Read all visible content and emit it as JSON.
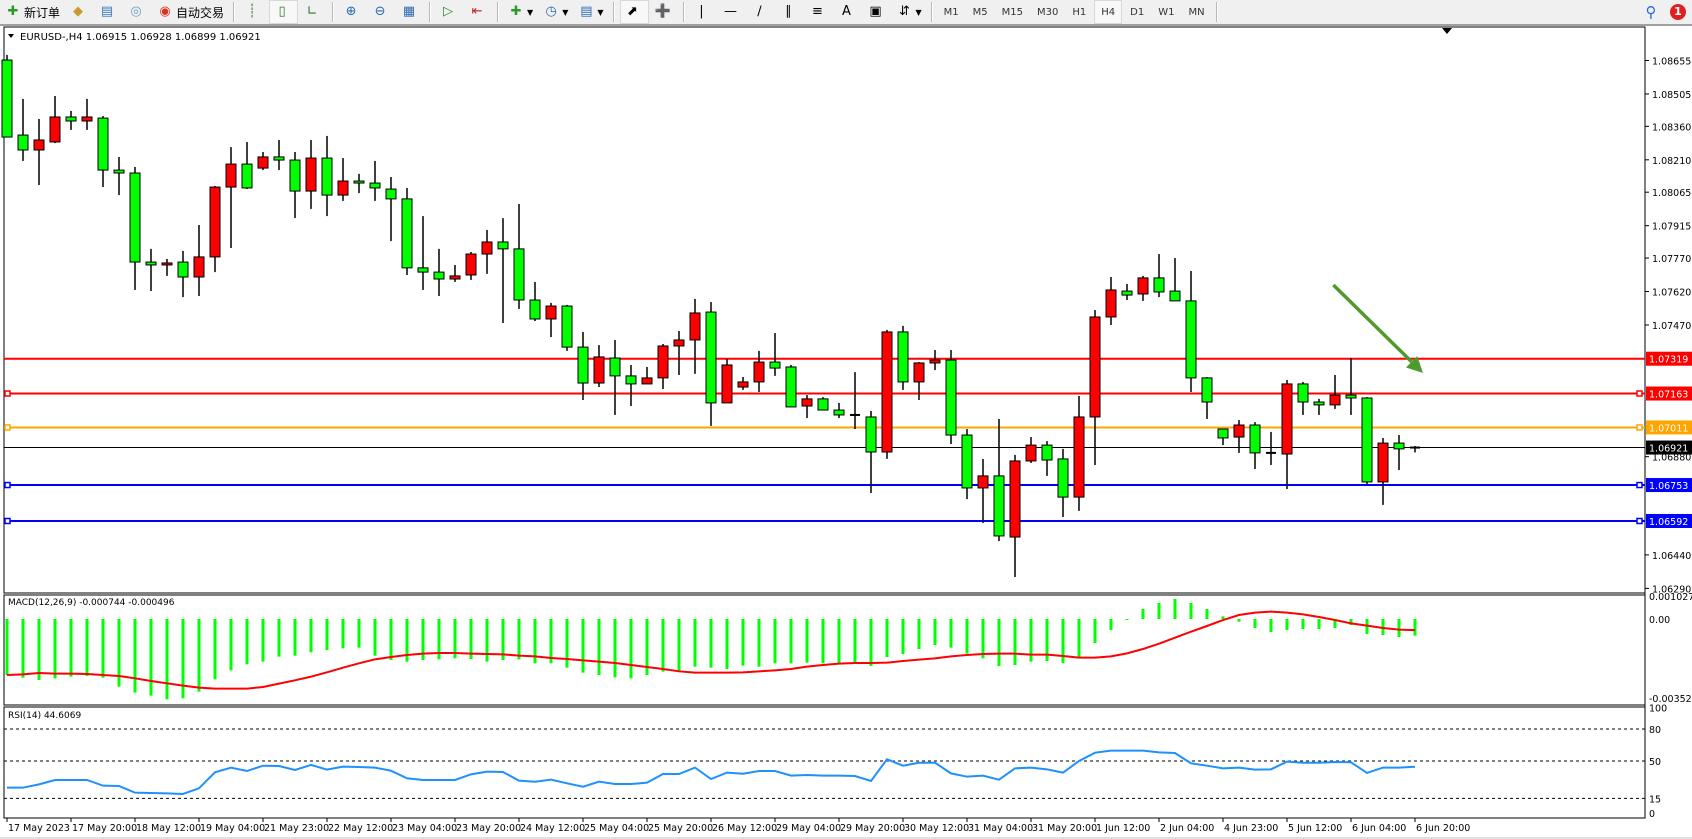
{
  "toolbar": {
    "new_order_label": "新订单",
    "auto_trading_label": "自动交易",
    "icons": [
      "new-order-icon",
      "market-watch-icon",
      "navigator-icon",
      "signals-icon",
      "auto-trading-icon",
      "bar-chart-icon",
      "candlestick-icon",
      "line-chart-icon",
      "zoom-in-icon",
      "zoom-out-icon",
      "tile-windows-icon",
      "chart-shift-icon",
      "autoscroll-icon",
      "indicators-icon",
      "periods-icon",
      "templates-icon",
      "cursor-icon",
      "crosshair-icon",
      "vertical-line-icon",
      "horizontal-line-icon",
      "trendline-icon",
      "equidistant-channel-icon",
      "fibonacci-icon",
      "text-icon",
      "text-label-icon",
      "arrows-icon"
    ],
    "text_tool": "A",
    "timeframes": [
      "M1",
      "M5",
      "M15",
      "M30",
      "H1",
      "H4",
      "D1",
      "W1",
      "MN"
    ],
    "active_timeframe": "H4",
    "notification_count": "1"
  },
  "chart_data": {
    "type": "candlestick",
    "header": "EURUSD-,H4  1.06915 1.06928 1.06899 1.06921",
    "colors": {
      "bull": "#ff0000",
      "bear": "#00ff00",
      "outline": "#000000",
      "arrow": "#4f9a2f"
    },
    "price_ticks": [
      "1.08655",
      "1.08505",
      "1.08360",
      "1.08210",
      "1.08065",
      "1.07915",
      "1.07770",
      "1.07620",
      "1.07470",
      "1.06880",
      "1.06440",
      "1.06290"
    ],
    "candles": [
      [
        1.08657,
        1.0868,
        1.08312,
        1.08312
      ],
      [
        1.08321,
        1.08483,
        1.08205,
        1.08254
      ],
      [
        1.08254,
        1.08393,
        1.08097,
        1.08299
      ],
      [
        1.0829,
        1.08496,
        1.08285,
        1.08402
      ],
      [
        1.08402,
        1.08429,
        1.08344,
        1.08384
      ],
      [
        1.08384,
        1.08483,
        1.08344,
        1.08402
      ],
      [
        1.08397,
        1.08406,
        1.08088,
        1.08164
      ],
      [
        1.08164,
        1.08223,
        1.08052,
        1.08151
      ],
      [
        1.08151,
        1.08178,
        1.07627,
        1.07752
      ],
      [
        1.07752,
        1.07811,
        1.07622,
        1.07739
      ],
      [
        1.07739,
        1.07766,
        1.0769,
        1.07748
      ],
      [
        1.07752,
        1.07802,
        1.07595,
        1.07685
      ],
      [
        1.07685,
        1.07918,
        1.076,
        1.07775
      ],
      [
        1.07775,
        1.08093,
        1.07707,
        1.08088
      ],
      [
        1.08088,
        1.08267,
        1.07815,
        1.08191
      ],
      [
        1.08191,
        1.0829,
        1.08079,
        1.08084
      ],
      [
        1.08173,
        1.08245,
        1.08164,
        1.08223
      ],
      [
        1.08223,
        1.08299,
        1.08164,
        1.08209
      ],
      [
        1.08209,
        1.08245,
        1.07949,
        1.0807
      ],
      [
        1.0807,
        1.08299,
        1.0799,
        1.08218
      ],
      [
        1.08218,
        1.08317,
        1.07958,
        1.08052
      ],
      [
        1.08052,
        1.08218,
        1.08026,
        1.08115
      ],
      [
        1.08115,
        1.08147,
        1.08061,
        1.08106
      ],
      [
        1.08106,
        1.08205,
        1.08026,
        1.08084
      ],
      [
        1.08079,
        1.08133,
        1.07846,
        1.08035
      ],
      [
        1.08035,
        1.08084,
        1.07694,
        1.07726
      ],
      [
        1.07726,
        1.07958,
        1.07627,
        1.07707
      ],
      [
        1.07707,
        1.07811,
        1.076,
        1.07676
      ],
      [
        1.07676,
        1.07739,
        1.07663,
        1.0769
      ],
      [
        1.07694,
        1.07797,
        1.07672,
        1.07788
      ],
      [
        1.07788,
        1.07896,
        1.07699,
        1.07842
      ],
      [
        1.07842,
        1.07949,
        1.07479,
        1.07811
      ],
      [
        1.07811,
        1.08012,
        1.07542,
        1.07582
      ],
      [
        1.07582,
        1.07663,
        1.07488,
        1.07497
      ],
      [
        1.07497,
        1.07569,
        1.07416,
        1.07555
      ],
      [
        1.07555,
        1.0756,
        1.07354,
        1.07371
      ],
      [
        1.07371,
        1.07439,
        1.07134,
        1.0721
      ],
      [
        1.0721,
        1.0738,
        1.07192,
        1.07327
      ],
      [
        1.07322,
        1.07403,
        1.07067,
        1.07242
      ],
      [
        1.07242,
        1.07291,
        1.07107,
        1.07206
      ],
      [
        1.07206,
        1.07282,
        1.07206,
        1.07233
      ],
      [
        1.07233,
        1.07385,
        1.07183,
        1.07376
      ],
      [
        1.07376,
        1.07443,
        1.07246,
        1.07403
      ],
      [
        1.07403,
        1.07587,
        1.07251,
        1.07524
      ],
      [
        1.07528,
        1.07573,
        1.07018,
        1.07121
      ],
      [
        1.07121,
        1.07318,
        1.07121,
        1.07291
      ],
      [
        1.07192,
        1.07237,
        1.07179,
        1.07215
      ],
      [
        1.07215,
        1.07354,
        1.0717,
        1.07304
      ],
      [
        1.07304,
        1.07434,
        1.07242,
        1.07277
      ],
      [
        1.07282,
        1.07291,
        1.07103,
        1.07103
      ],
      [
        1.07107,
        1.07156,
        1.07053,
        1.07139
      ],
      [
        1.07139,
        1.07147,
        1.07089,
        1.07089
      ],
      [
        1.07089,
        1.07121,
        1.07053,
        1.07067
      ],
      [
        1.07067,
        1.07259,
        1.07004,
        1.07062
      ],
      [
        1.07058,
        1.07085,
        1.06717,
        1.06901
      ],
      [
        1.06901,
        1.07448,
        1.0687,
        1.07439
      ],
      [
        1.07439,
        1.07466,
        1.07179,
        1.07215
      ],
      [
        1.07215,
        1.07304,
        1.07134,
        1.073
      ],
      [
        1.073,
        1.07358,
        1.07268,
        1.07313
      ],
      [
        1.07313,
        1.07358,
        1.06937,
        1.06977
      ],
      [
        1.06977,
        1.07004,
        1.0669,
        1.0674
      ],
      [
        1.0674,
        1.0687,
        1.06583,
        1.06794
      ],
      [
        1.06794,
        1.07049,
        1.06502,
        1.06525
      ],
      [
        1.0652,
        1.06888,
        1.06341,
        1.06861
      ],
      [
        1.06861,
        1.06968,
        1.06852,
        1.06932
      ],
      [
        1.06932,
        1.0695,
        1.06794,
        1.06865
      ],
      [
        1.0687,
        1.06915,
        1.0661,
        1.06699
      ],
      [
        1.06699,
        1.07152,
        1.06637,
        1.07058
      ],
      [
        1.07058,
        1.07537,
        1.06843,
        1.07506
      ],
      [
        1.07506,
        1.07685,
        1.0747,
        1.07627
      ],
      [
        1.07622,
        1.07654,
        1.07582,
        1.07604
      ],
      [
        1.07609,
        1.0769,
        1.07578,
        1.07681
      ],
      [
        1.07681,
        1.07788,
        1.07595,
        1.07618
      ],
      [
        1.07622,
        1.0777,
        1.07578,
        1.07578
      ],
      [
        1.07578,
        1.07712,
        1.0717,
        1.07233
      ],
      [
        1.07233,
        1.07237,
        1.07049,
        1.07125
      ],
      [
        1.07004,
        1.07004,
        1.06932,
        1.06964
      ],
      [
        1.06968,
        1.07044,
        1.06897,
        1.07022
      ],
      [
        1.07022,
        1.07035,
        1.06825,
        1.06897
      ],
      [
        1.06897,
        1.06991,
        1.06843,
        1.06897
      ],
      [
        1.06892,
        1.07224,
        1.06735,
        1.07206
      ],
      [
        1.07206,
        1.07215,
        1.07067,
        1.07125
      ],
      [
        1.07125,
        1.07139,
        1.07067,
        1.07112
      ],
      [
        1.07112,
        1.07246,
        1.07094,
        1.07156
      ],
      [
        1.07156,
        1.07322,
        1.07067,
        1.07143
      ],
      [
        1.07143,
        1.07147,
        1.06758,
        1.06767
      ],
      [
        1.06767,
        1.06964,
        1.06664,
        1.06941
      ],
      [
        1.06941,
        1.06977,
        1.0682,
        1.06915
      ],
      [
        1.06915,
        1.06928,
        1.06899,
        1.06921
      ]
    ],
    "levels": [
      {
        "price": 1.07319,
        "label": "1.07319",
        "color": "#ff0000"
      },
      {
        "price": 1.07163,
        "label": "1.07163",
        "color": "#ff0000"
      },
      {
        "price": 1.07011,
        "label": "1.07011",
        "color": "#ffa500"
      },
      {
        "price": 1.06753,
        "label": "1.06753",
        "color": "#0000ff"
      },
      {
        "price": 1.06592,
        "label": "1.06592",
        "color": "#0000ff"
      }
    ],
    "current_price": {
      "price": 1.06921,
      "label": "1.06921",
      "color": "#000000"
    },
    "arrow": {
      "from": {
        "bar": 82.9,
        "price": 1.07649
      },
      "to": {
        "bar": 88.5,
        "price": 1.07255
      }
    },
    "time_labels": [
      "17 May 2023",
      "17 May 20:00",
      "18 May 12:00",
      "19 May 04:00",
      "21 May 23:00",
      "22 May 12:00",
      "23 May 04:00",
      "23 May 20:00",
      "24 May 12:00",
      "25 May 04:00",
      "25 May 20:00",
      "26 May 12:00",
      "29 May 04:00",
      "29 May 20:00",
      "30 May 12:00",
      "31 May 04:00",
      "31 May 20:00",
      "1 Jun 12:00",
      "2 Jun 04:00",
      "4 Jun 23:00",
      "5 Jun 12:00",
      "6 Jun 04:00",
      "6 Jun 20:00"
    ],
    "macd": {
      "label": "MACD(12,26,9) -0.000744 -0.000496",
      "ticks": [
        "0.001027",
        "0.00",
        "-0.00352"
      ],
      "hist_color": "#00ff00",
      "signal_color": "#ff0000",
      "histogram": [
        -0.002495,
        -0.002614,
        -0.002718,
        -0.002643,
        -0.002569,
        -0.002539,
        -0.002614,
        -0.003015,
        -0.003282,
        -0.003416,
        -0.003579,
        -0.003534,
        -0.003237,
        -0.002688,
        -0.002287,
        -0.00202,
        -0.001901,
        -0.001678,
        -0.001634,
        -0.001485,
        -0.001381,
        -0.001307,
        -0.001277,
        -0.001634,
        -0.001827,
        -0.001901,
        -0.001827,
        -0.001797,
        -0.001752,
        -0.001782,
        -0.001901,
        -0.001827,
        -0.001797,
        -0.001975,
        -0.001975,
        -0.002168,
        -0.002391,
        -0.002495,
        -0.002599,
        -0.002643,
        -0.002495,
        -0.002346,
        -0.002317,
        -0.002124,
        -0.002168,
        -0.002228,
        -0.002079,
        -0.002124,
        -0.001975,
        -0.001975,
        -0.001945,
        -0.001975,
        -0.001975,
        -0.001975,
        -0.002094,
        -0.001693,
        -0.001559,
        -0.001337,
        -0.001158,
        -0.001277,
        -0.001544,
        -0.001752,
        -0.002094,
        -0.002049,
        -0.001901,
        -0.001871,
        -0.00196,
        -0.001723,
        -0.001069,
        -0.00049,
        -3e-05,
        0.000446,
        0.000713,
        0.000891,
        0.000713,
        0.000446,
        0.000119,
        -0.000119,
        -0.000401,
        -0.000579,
        -0.00049,
        -0.000446,
        -0.000446,
        -0.000401,
        -0.000267,
        -0.000668,
        -0.000713,
        -0.000802,
        -0.000744
      ],
      "signal": [
        -0.002495,
        -0.002465,
        -0.002406,
        -0.002435,
        -0.002435,
        -0.00245,
        -0.002495,
        -0.002539,
        -0.002643,
        -0.002762,
        -0.002866,
        -0.00297,
        -0.003059,
        -0.003104,
        -0.003104,
        -0.003104,
        -0.003029,
        -0.002881,
        -0.002732,
        -0.002569,
        -0.002376,
        -0.002168,
        -0.001975,
        -0.001797,
        -0.001693,
        -0.001604,
        -0.001544,
        -0.001515,
        -0.001515,
        -0.001544,
        -0.001559,
        -0.001574,
        -0.001634,
        -0.001663,
        -0.001737,
        -0.001782,
        -0.001841,
        -0.001901,
        -0.00196,
        -0.002049,
        -0.002138,
        -0.002228,
        -0.002331,
        -0.002391,
        -0.002391,
        -0.002391,
        -0.002376,
        -0.002331,
        -0.002287,
        -0.002228,
        -0.002124,
        -0.002049,
        -0.00199,
        -0.00196,
        -0.00196,
        -0.001945,
        -0.001871,
        -0.001812,
        -0.001752,
        -0.001663,
        -0.001604,
        -0.001559,
        -0.001544,
        -0.001544,
        -0.001589,
        -0.001589,
        -0.001648,
        -0.001723,
        -0.001723,
        -0.001663,
        -0.00153,
        -0.001337,
        -0.001099,
        -0.000832,
        -0.000564,
        -0.000312,
        -4.5e-05,
        0.000178,
        0.000282,
        0.000327,
        0.000282,
        0.000208,
        8.9e-05,
        -4.5e-05,
        -0.000193,
        -0.000297,
        -0.000401,
        -0.000475,
        -0.000496
      ]
    },
    "rsi": {
      "label": "RSI(14) 44.6069",
      "ticks": [
        "100",
        "80",
        "50",
        "15",
        "0"
      ],
      "levels": [
        80,
        50,
        15
      ],
      "color": "#1e90ff",
      "values": [
        25.0,
        25.0,
        28.1,
        32.2,
        32.2,
        32.2,
        26.9,
        26.6,
        20.3,
        20.0,
        19.7,
        19.1,
        24.4,
        39.4,
        43.8,
        40.6,
        45.6,
        45.3,
        41.6,
        46.3,
        41.9,
        44.7,
        44.4,
        43.8,
        40.9,
        33.8,
        32.2,
        32.2,
        32.2,
        37.5,
        40.0,
        39.7,
        31.6,
        30.6,
        32.5,
        29.1,
        25.9,
        30.6,
        28.4,
        28.4,
        29.7,
        37.8,
        37.8,
        43.8,
        33.1,
        39.1,
        38.1,
        40.6,
        40.6,
        36.3,
        36.9,
        36.3,
        36.3,
        35.9,
        31.3,
        51.6,
        45.6,
        48.4,
        48.4,
        38.4,
        35.3,
        36.3,
        32.5,
        43.1,
        43.8,
        42.2,
        39.1,
        50.0,
        57.8,
        59.7,
        59.7,
        59.7,
        58.1,
        57.5,
        47.8,
        45.6,
        43.1,
        43.8,
        41.9,
        42.2,
        49.4,
        48.4,
        48.4,
        49.1,
        48.8,
        38.8,
        43.8,
        43.8,
        44.6
      ]
    }
  }
}
